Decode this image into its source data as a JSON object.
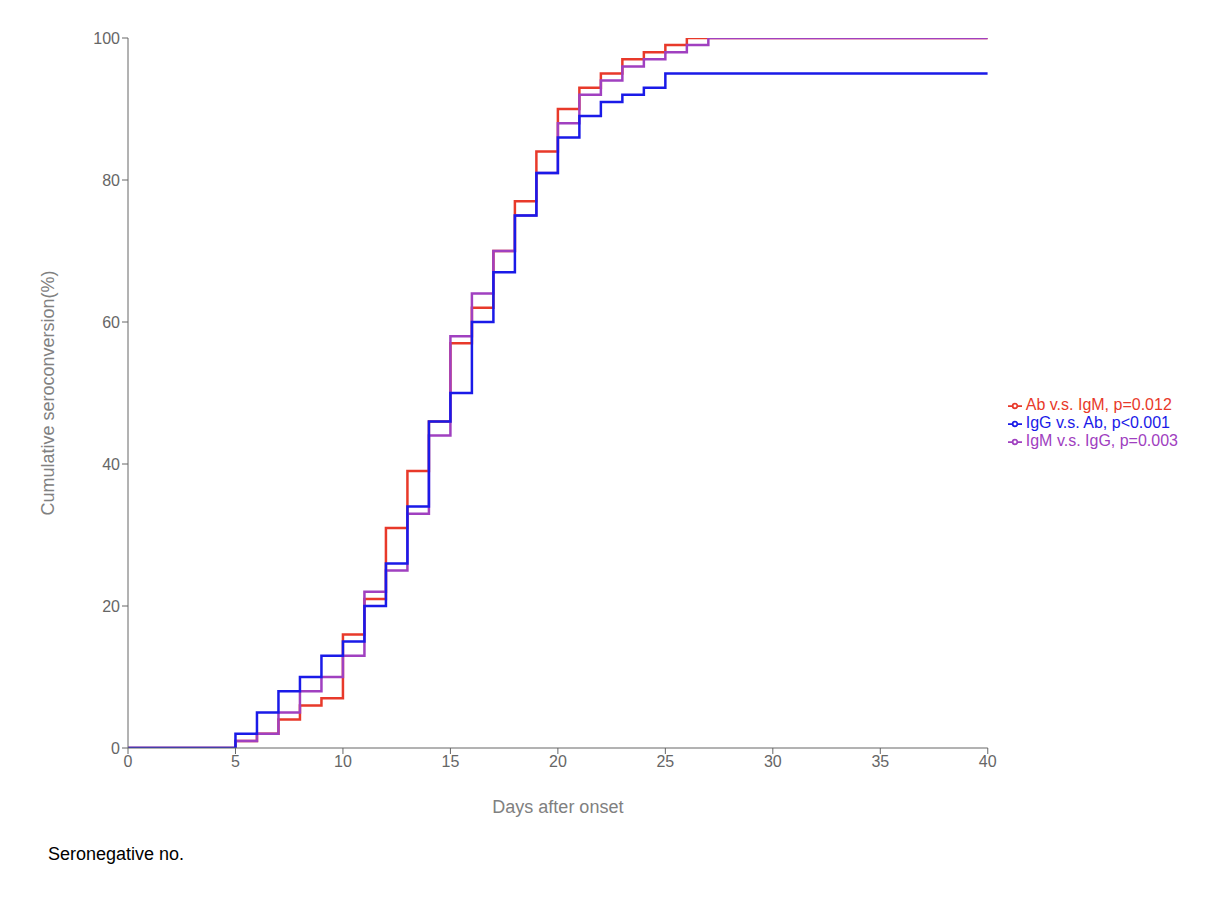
{
  "chart_data": {
    "type": "step",
    "xlabel": "Days after onset",
    "ylabel": "Cumulative seroconversion(%)",
    "annotations": [
      "Seronegative no."
    ],
    "xlim": [
      0,
      40
    ],
    "ylim": [
      0,
      100
    ],
    "xticks": [
      0,
      5,
      10,
      15,
      20,
      25,
      30,
      35,
      40
    ],
    "yticks": [
      0,
      20,
      40,
      60,
      80,
      100
    ],
    "grid": false,
    "legend": "right",
    "series": [
      {
        "name": "Ab v.s. IgM, p=0.012",
        "color": "#E8392A",
        "x": [
          0,
          1,
          2,
          3,
          4,
          5,
          6,
          7,
          8,
          9,
          10,
          11,
          12,
          13,
          14,
          15,
          16,
          17,
          18,
          19,
          20,
          21,
          22,
          23,
          24,
          25,
          26,
          27,
          40
        ],
        "values": [
          0,
          0,
          0,
          0,
          0,
          1,
          2,
          4,
          6,
          7,
          16,
          21,
          31,
          39,
          46,
          57,
          62,
          70,
          77,
          84,
          90,
          93,
          95,
          97,
          98,
          99,
          100,
          100,
          100
        ]
      },
      {
        "name": "IgM v.s. IgG, p=0.003",
        "color": "#A040C0",
        "x": [
          0,
          1,
          2,
          3,
          4,
          5,
          6,
          7,
          8,
          9,
          10,
          11,
          12,
          13,
          14,
          15,
          16,
          17,
          18,
          19,
          20,
          21,
          22,
          23,
          24,
          25,
          26,
          27,
          28,
          40
        ],
        "values": [
          0,
          0,
          0,
          0,
          0,
          1,
          2,
          5,
          8,
          10,
          13,
          22,
          25,
          33,
          44,
          58,
          64,
          70,
          75,
          81,
          88,
          92,
          94,
          96,
          97,
          98,
          99,
          100,
          100,
          100
        ]
      },
      {
        "name": "IgG v.s. Ab, p<0.001",
        "color": "#1A1AE8",
        "x": [
          0,
          1,
          2,
          3,
          4,
          5,
          6,
          7,
          8,
          9,
          10,
          11,
          12,
          13,
          14,
          15,
          16,
          17,
          18,
          19,
          20,
          21,
          22,
          23,
          24,
          25,
          26,
          27,
          39,
          40
        ],
        "values": [
          0,
          0,
          0,
          0,
          0,
          2,
          5,
          8,
          10,
          13,
          15,
          20,
          26,
          34,
          46,
          50,
          60,
          67,
          75,
          81,
          86,
          89,
          91,
          92,
          93,
          95,
          95,
          95,
          95,
          95
        ]
      }
    ]
  }
}
